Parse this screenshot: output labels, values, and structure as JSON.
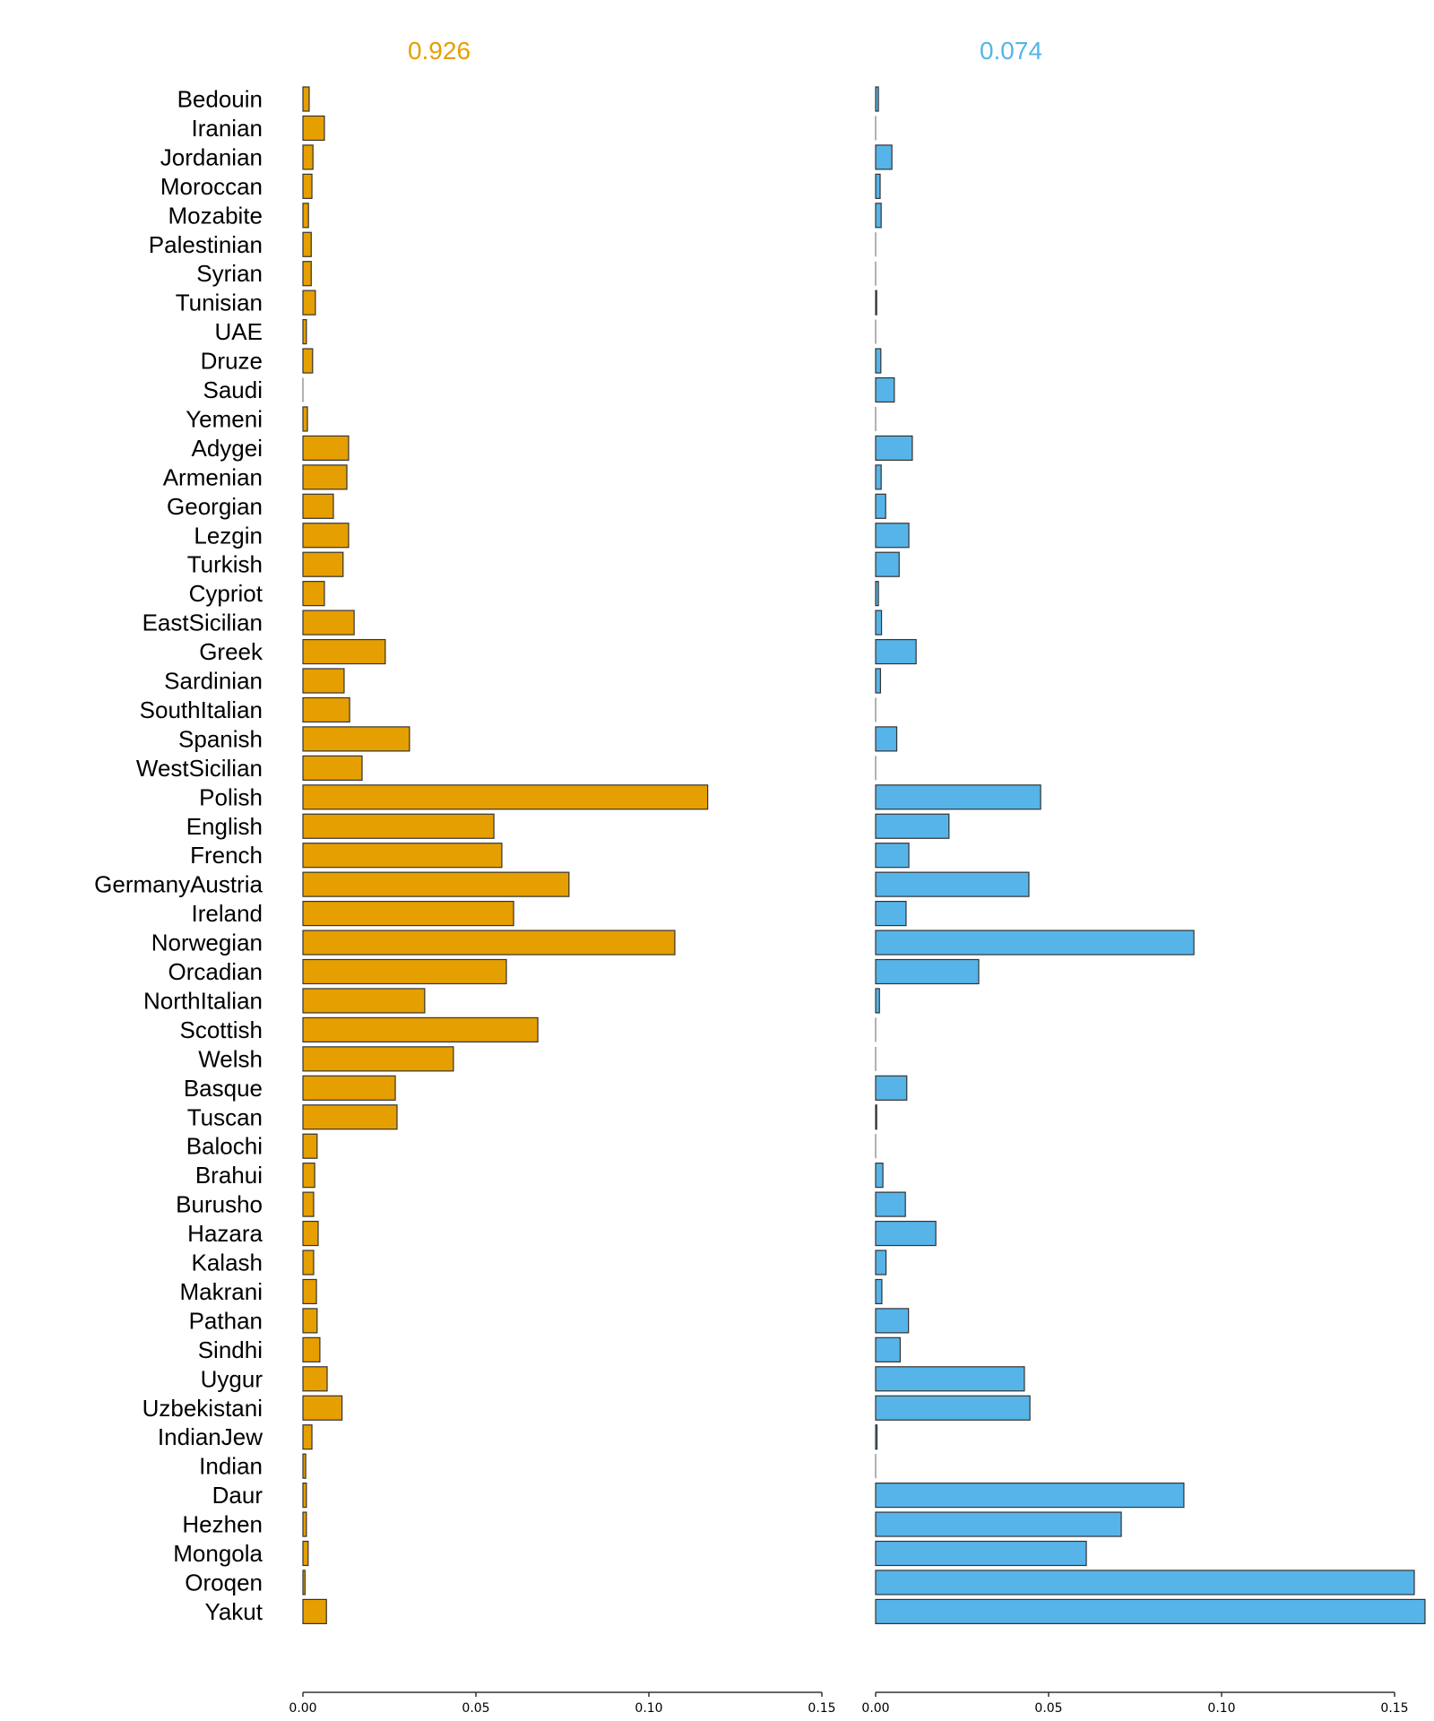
{
  "chart_data": {
    "type": "bar",
    "orientation": "horizontal",
    "title": "",
    "xlabel": "",
    "ylabel": "",
    "categories": [
      "Bedouin",
      "Iranian",
      "Jordanian",
      "Moroccan",
      "Mozabite",
      "Palestinian",
      "Syrian",
      "Tunisian",
      "UAE",
      "Druze",
      "Saudi",
      "Yemeni",
      "Adygei",
      "Armenian",
      "Georgian",
      "Lezgin",
      "Turkish",
      "Cypriot",
      "EastSicilian",
      "Greek",
      "Sardinian",
      "SouthItalian",
      "Spanish",
      "WestSicilian",
      "Polish",
      "English",
      "French",
      "GermanyAustria",
      "Ireland",
      "Norwegian",
      "Orcadian",
      "NorthItalian",
      "Scottish",
      "Welsh",
      "Basque",
      "Tuscan",
      "Balochi",
      "Brahui",
      "Burusho",
      "Hazara",
      "Kalash",
      "Makrani",
      "Pathan",
      "Sindhi",
      "Uygur",
      "Uzbekistani",
      "IndianJew",
      "Indian",
      "Daur",
      "Hezhen",
      "Mongola",
      "Oroqen",
      "Yakut"
    ],
    "xlim": [
      0,
      0.15
    ],
    "xticks": [
      "0.00",
      "0.05",
      "0.10",
      "0.15"
    ],
    "grid": false,
    "series": [
      {
        "name": "0.926",
        "color": "#E69F00",
        "values": [
          0.0018,
          0.0062,
          0.0029,
          0.0026,
          0.0016,
          0.0024,
          0.0024,
          0.0036,
          0.001,
          0.0028,
          0.0,
          0.0013,
          0.0132,
          0.0127,
          0.0088,
          0.0132,
          0.0116,
          0.0062,
          0.0148,
          0.0238,
          0.0119,
          0.0135,
          0.0308,
          0.0171,
          0.117,
          0.0552,
          0.0575,
          0.0769,
          0.0609,
          0.1075,
          0.0588,
          0.0352,
          0.0679,
          0.0435,
          0.0267,
          0.0272,
          0.0041,
          0.0034,
          0.0031,
          0.0044,
          0.0031,
          0.0039,
          0.0041,
          0.0049,
          0.007,
          0.0113,
          0.0026,
          0.0008,
          0.001,
          0.001,
          0.0015,
          0.0006,
          0.0068
        ]
      },
      {
        "name": "0.074",
        "color": "#56B4E9",
        "values": [
          0.0008,
          0.0,
          0.0047,
          0.0013,
          0.0016,
          0.0,
          0.0,
          0.0003,
          0.0,
          0.0015,
          0.0054,
          0.0,
          0.0106,
          0.0016,
          0.0029,
          0.0096,
          0.0068,
          0.0008,
          0.0017,
          0.0117,
          0.0014,
          0.0,
          0.0061,
          0.0,
          0.0477,
          0.0212,
          0.0096,
          0.0443,
          0.0088,
          0.092,
          0.0298,
          0.0011,
          0.0,
          0.0,
          0.009,
          0.0003,
          0.0,
          0.0021,
          0.0086,
          0.0174,
          0.003,
          0.0018,
          0.0095,
          0.0071,
          0.043,
          0.0446,
          0.0004,
          0.0,
          0.0891,
          0.071,
          0.0609,
          0.1557,
          0.1588
        ]
      }
    ]
  }
}
